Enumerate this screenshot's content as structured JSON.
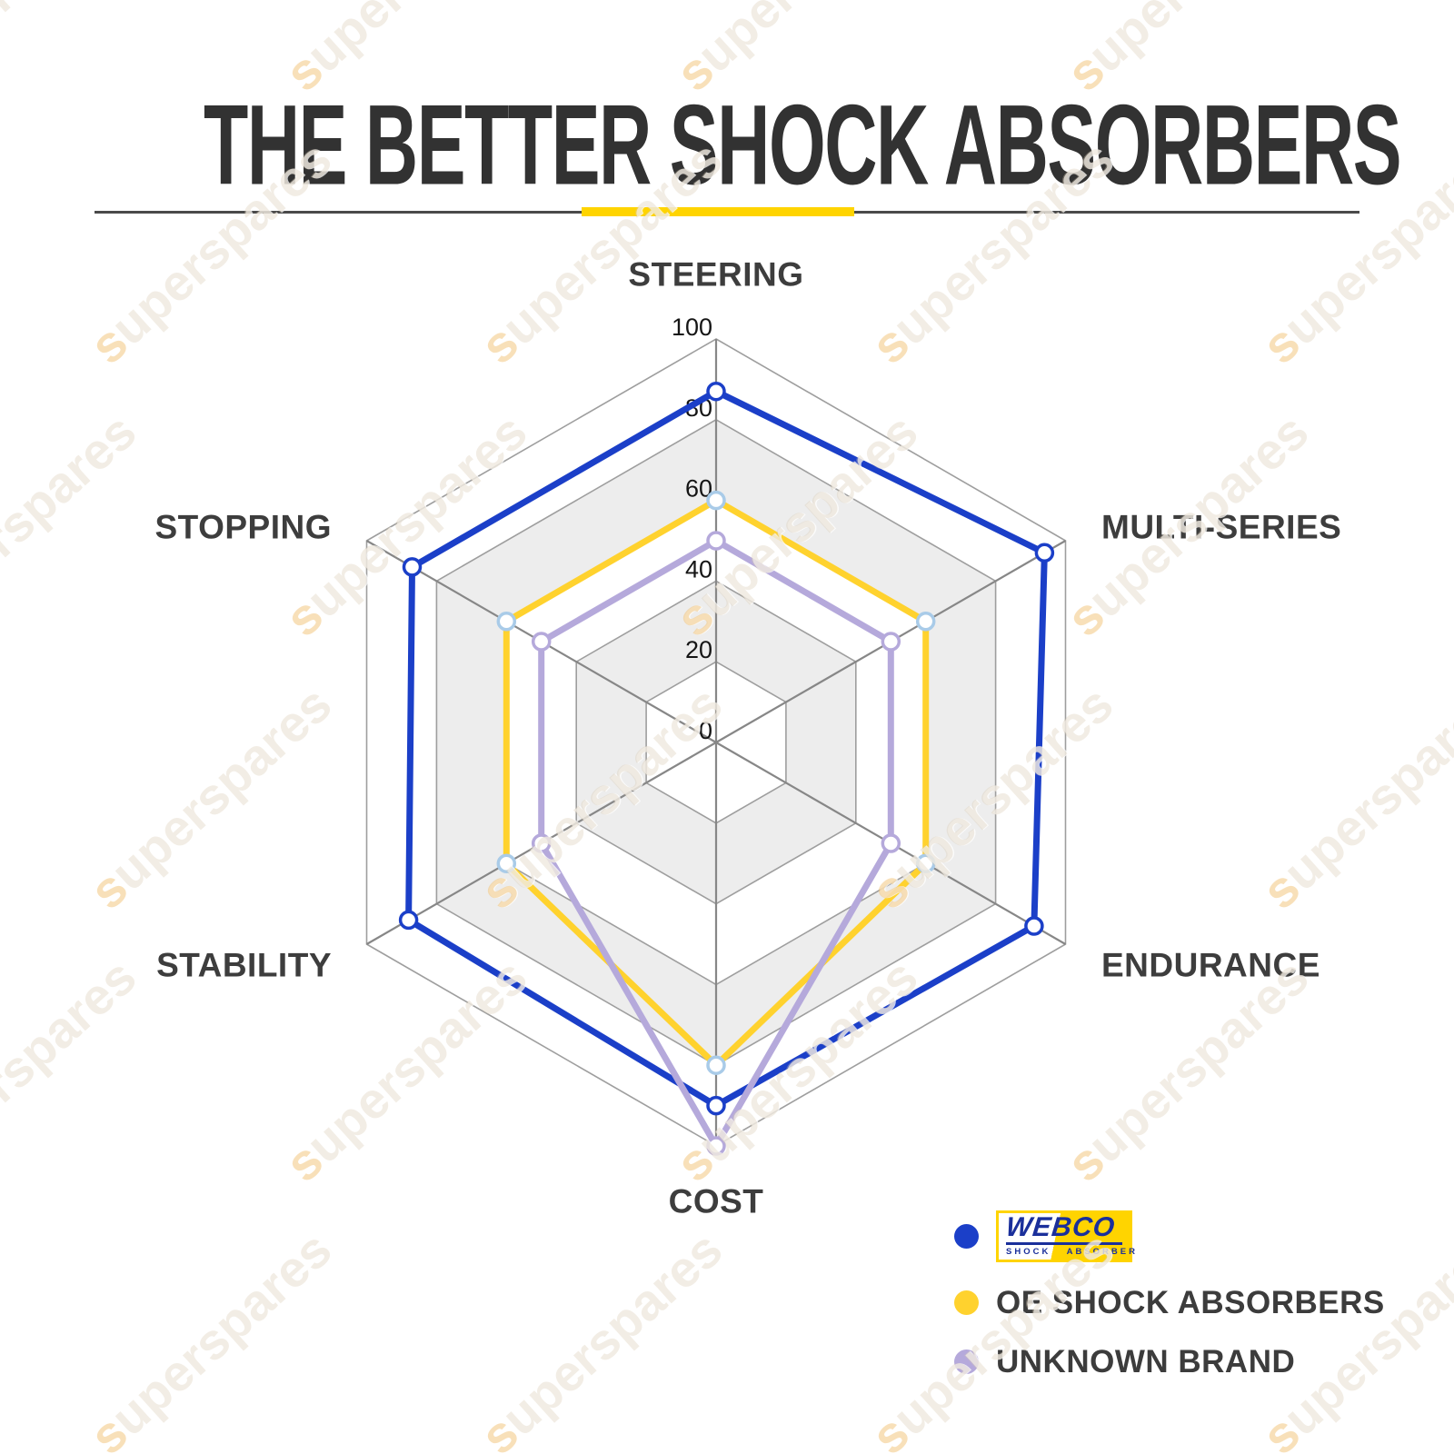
{
  "header": {
    "title": "THE BETTER SHOCK ABSORBERS"
  },
  "divider": {
    "line_color": "#4a4a4a",
    "accent_color": "#ffd400"
  },
  "watermark": {
    "text": "superspares"
  },
  "chart_data": {
    "type": "radar",
    "categories": [
      "STEERING",
      "MULTI-SERIES",
      "ENDURANCE",
      "COST",
      "STABILITY",
      "STOPPING"
    ],
    "series": [
      {
        "name": "WEBCO",
        "color": "#1b3fc8",
        "marker_stroke": "#1b3fc8",
        "values": [
          87,
          94,
          91,
          90,
          88,
          87
        ]
      },
      {
        "name": "OE SHOCK ABSORBERS",
        "color": "#ffd22e",
        "marker_stroke": "#a9cbe8",
        "values": [
          60,
          60,
          60,
          80,
          60,
          60
        ]
      },
      {
        "name": "UNKNOWN BRAND",
        "color": "#b5a9db",
        "marker_stroke": "#b5a9db",
        "values": [
          50,
          50,
          50,
          100,
          50,
          50
        ]
      }
    ],
    "ticks": [
      0,
      20,
      40,
      60,
      80,
      100
    ],
    "rmax": 100,
    "grid": {
      "band_colors": [
        "#ffffff",
        "#ededed"
      ],
      "ring_line_color": "#9e9e9e",
      "spoke_color": "#878787"
    },
    "tick_label_color": "#151515",
    "axis_label_color": "#3d3d3d",
    "legend_position": "bottom-right"
  },
  "legend": {
    "items": [
      {
        "dot_color": "#1b3fc8",
        "label": "WEBCO",
        "logo": {
          "brand": "WEBCO",
          "sub": "SHOCK ABSORBER",
          "bg": "#ffd400",
          "text_color": "#1a2f9b"
        }
      },
      {
        "dot_color": "#ffd22e",
        "label": "OE SHOCK ABSORBERS"
      },
      {
        "dot_color": "#b5a9db",
        "label": "UNKNOWN BRAND"
      }
    ]
  }
}
